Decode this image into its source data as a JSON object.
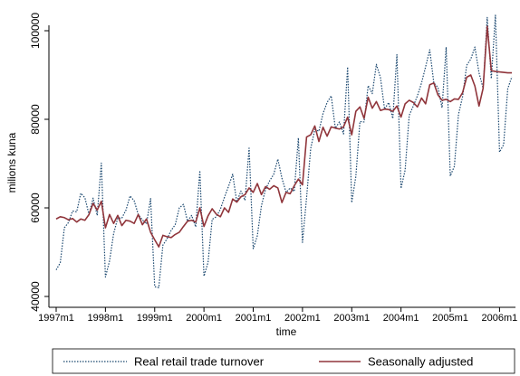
{
  "chart_data": {
    "type": "line",
    "xlabel": "time",
    "ylabel": "milions kuna",
    "x": [
      0,
      1,
      2,
      3,
      4,
      5,
      6,
      7,
      8,
      9,
      10,
      11,
      12,
      13,
      14,
      15,
      16,
      17,
      18,
      19,
      20,
      21,
      22,
      23,
      24,
      25,
      26,
      27,
      28,
      29,
      30,
      31,
      32,
      33,
      34,
      35,
      36,
      37,
      38,
      39,
      40,
      41,
      42,
      43,
      44,
      45,
      46,
      47,
      48,
      49,
      50,
      51,
      52,
      53,
      54,
      55,
      56,
      57,
      58,
      59,
      60,
      61,
      62,
      63,
      64,
      65,
      66,
      67,
      68,
      69,
      70,
      71,
      72,
      73,
      74,
      75,
      76,
      77,
      78,
      79,
      80,
      81,
      82,
      83,
      84,
      85,
      86,
      87,
      88,
      89,
      90,
      91,
      92,
      93,
      94,
      95,
      96,
      97,
      98,
      99,
      100,
      101,
      102,
      103,
      104,
      105,
      106,
      107,
      108,
      109,
      110,
      111
    ],
    "series": [
      {
        "name": "Real retail trade turnover",
        "color": "#1a476f",
        "dash": "dotted",
        "values": [
          46000,
          47600,
          55500,
          56700,
          59300,
          59100,
          63300,
          62300,
          58500,
          62200,
          58300,
          70100,
          44400,
          48000,
          54200,
          57700,
          57700,
          59500,
          62700,
          61600,
          58500,
          57300,
          56400,
          62100,
          42200,
          42000,
          51600,
          53000,
          54900,
          56200,
          60000,
          60800,
          57000,
          58300,
          55700,
          68400,
          44600,
          47700,
          57400,
          58000,
          59700,
          62400,
          64900,
          67600,
          61300,
          63800,
          61700,
          73500,
          50800,
          53700,
          60500,
          64200,
          66100,
          67600,
          71000,
          66700,
          63500,
          64500,
          63700,
          75800,
          52200,
          62300,
          73400,
          77700,
          77300,
          81300,
          83800,
          85300,
          78000,
          79400,
          76700,
          91800,
          61200,
          67100,
          79500,
          79400,
          87600,
          85800,
          92400,
          89400,
          82300,
          83800,
          80200,
          94600,
          64400,
          68500,
          80900,
          83000,
          85300,
          88200,
          91900,
          95700,
          88200,
          87200,
          82600,
          96300,
          67200,
          69400,
          81100,
          85100,
          92200,
          93600,
          96300,
          90500,
          87000,
          103000,
          89200,
          103500,
          72600,
          74300,
          86900,
          89600
        ]
      },
      {
        "name": "Seasonally adjusted",
        "color": "#90353b",
        "dash": "solid",
        "values": [
          57500,
          58000,
          57800,
          57300,
          57600,
          56800,
          57500,
          57200,
          58500,
          61000,
          59500,
          61500,
          55500,
          58500,
          56500,
          58300,
          56000,
          57200,
          57000,
          56500,
          58500,
          56200,
          57500,
          54500,
          52800,
          51200,
          53800,
          53500,
          53300,
          54000,
          54500,
          55800,
          57000,
          57200,
          56800,
          60000,
          55800,
          58200,
          59800,
          58600,
          58000,
          60000,
          59000,
          62000,
          61300,
          62500,
          63000,
          64500,
          63500,
          65500,
          63000,
          64800,
          64200,
          65000,
          64500,
          61200,
          63500,
          63200,
          65000,
          66500,
          65200,
          76000,
          76500,
          78500,
          75000,
          78200,
          76200,
          78300,
          78000,
          77800,
          78300,
          80500,
          76500,
          81800,
          82800,
          80200,
          85000,
          82500,
          84000,
          82000,
          82300,
          82200,
          81800,
          83000,
          80500,
          83500,
          84300,
          83800,
          82800,
          84800,
          83500,
          87800,
          88200,
          85500,
          84300,
          84500,
          84000,
          84600,
          84500,
          86000,
          89500,
          90000,
          87500,
          83000,
          87000,
          101000,
          91000,
          90800,
          90700,
          90600,
          90500,
          90500
        ]
      }
    ],
    "xlim": [
      0,
      111
    ],
    "xticks": [
      {
        "value": 0,
        "label": "1997m1"
      },
      {
        "value": 12,
        "label": "1998m1"
      },
      {
        "value": 24,
        "label": "1999m1"
      },
      {
        "value": 36,
        "label": "2000m1"
      },
      {
        "value": 48,
        "label": "2001m1"
      },
      {
        "value": 60,
        "label": "2002m1"
      },
      {
        "value": 72,
        "label": "2003m1"
      },
      {
        "value": 84,
        "label": "2004m1"
      },
      {
        "value": 96,
        "label": "2005m1"
      },
      {
        "value": 108,
        "label": "2006m1"
      }
    ],
    "ylim": [
      40000,
      100000
    ],
    "yticks": [
      40000,
      60000,
      80000,
      100000
    ],
    "legend": "bottom"
  }
}
